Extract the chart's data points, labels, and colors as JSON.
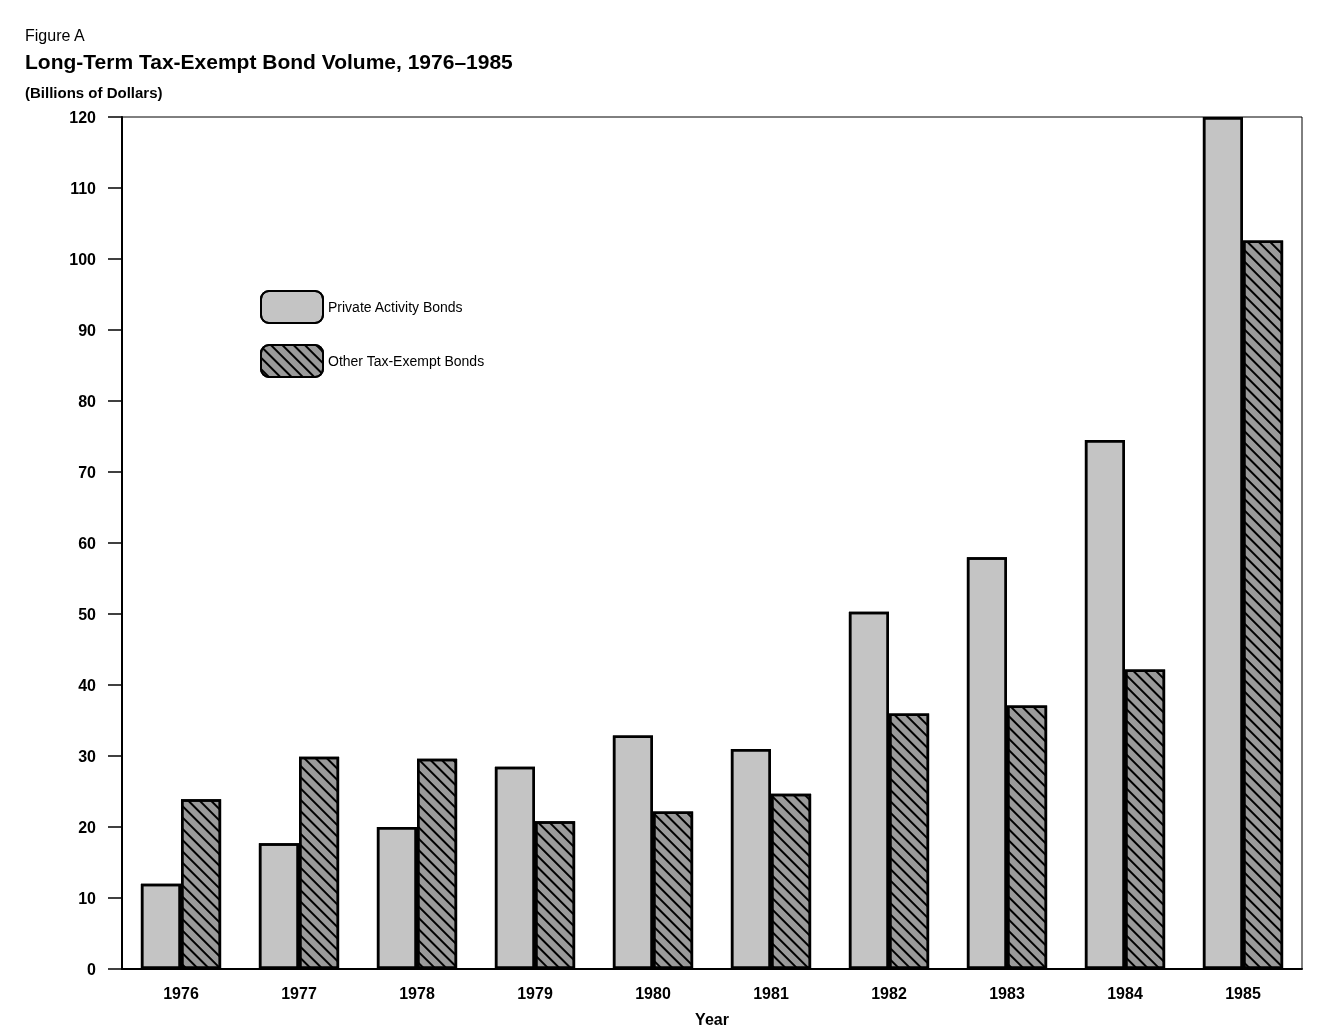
{
  "chart_data": {
    "type": "bar",
    "title": "Long-Term Tax-Exempt Bond Volume, 1976–1985",
    "subtitle": "(Billions of Dollars)",
    "annotations": [
      "Figure A"
    ],
    "xlabel": "Year",
    "categories": [
      "1976",
      "1977",
      "1978",
      "1979",
      "1980",
      "1981",
      "1982",
      "1983",
      "1984",
      "1985"
    ],
    "series": [
      {
        "name": "Private Activity Bonds",
        "color": "#c4c4c4",
        "values": [
          12,
          17.7,
          20,
          28.5,
          32.9,
          31,
          50.3,
          58,
          74.5,
          120
        ]
      },
      {
        "name": "Other Tax-Exempt Bonds",
        "color": "#9a9a9a",
        "values": [
          23.9,
          29.9,
          29.6,
          20.8,
          22.2,
          24.7,
          36,
          37.1,
          42.2,
          102.6
        ]
      }
    ],
    "ylim": [
      0,
      120
    ],
    "yticks": [
      0,
      10,
      20,
      30,
      40,
      50,
      60,
      70,
      80,
      90,
      100,
      110,
      120
    ],
    "grid": false,
    "legend": "top left"
  }
}
